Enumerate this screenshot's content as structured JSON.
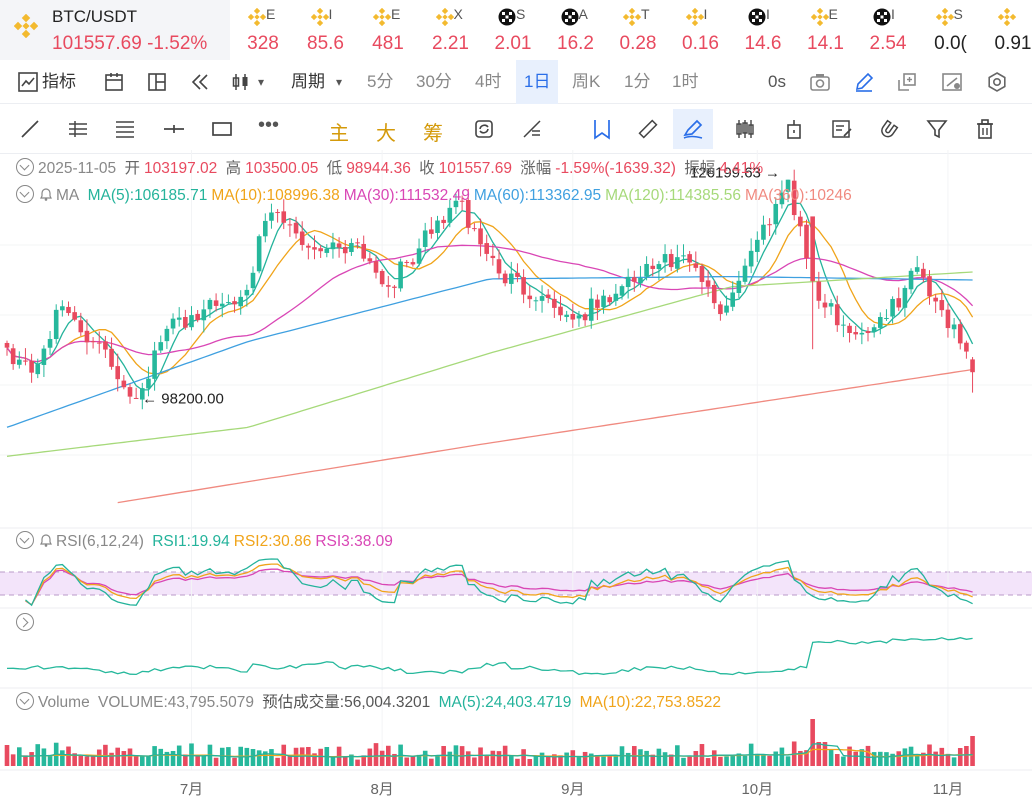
{
  "active_ticker": {
    "symbol": "BTC/USDT",
    "price": "101557.69",
    "change": "-1.52%",
    "icon": "binance-diamond-icon"
  },
  "tickers": [
    {
      "icon": "binance-diamond-icon",
      "symbol": "E",
      "price": "328",
      "color": "#e84a5f"
    },
    {
      "icon": "binance-diamond-icon",
      "symbol": "I",
      "price": "85.6",
      "color": "#e84a5f"
    },
    {
      "icon": "binance-diamond-icon",
      "symbol": "E",
      "price": "481",
      "color": "#e84a5f"
    },
    {
      "icon": "binance-diamond-icon",
      "symbol": "X",
      "price": "2.21",
      "color": "#e84a5f"
    },
    {
      "icon": "okx-cube-icon",
      "symbol": "S",
      "price": "2.01",
      "color": "#e84a5f"
    },
    {
      "icon": "okx-cube-icon",
      "symbol": "A",
      "price": "16.2",
      "color": "#e84a5f"
    },
    {
      "icon": "binance-diamond-icon",
      "symbol": "T",
      "price": "0.28",
      "color": "#e84a5f"
    },
    {
      "icon": "binance-diamond-icon",
      "symbol": "I",
      "price": "0.16",
      "color": "#e84a5f"
    },
    {
      "icon": "okx-cube-icon",
      "symbol": "I",
      "price": "14.6",
      "color": "#e84a5f"
    },
    {
      "icon": "binance-diamond-icon",
      "symbol": "E",
      "price": "14.1",
      "color": "#e84a5f"
    },
    {
      "icon": "okx-cube-icon",
      "symbol": "I",
      "price": "2.54",
      "color": "#e84a5f"
    },
    {
      "icon": "binance-diamond-icon",
      "symbol": "S",
      "price": "0.0(",
      "color": "#222222"
    },
    {
      "icon": "binance-diamond-icon",
      "symbol": "",
      "price": "0.91",
      "color": "#222222"
    }
  ],
  "toolbar": {
    "indicators_label": "指标",
    "period_label": "周期",
    "periods": [
      "5分",
      "30分",
      "4时",
      "1日",
      "周K",
      "1分",
      "1时"
    ],
    "active_period": "1日",
    "countdown": "0s"
  },
  "drawing_tools": {
    "main_label": "主",
    "big_label": "大",
    "chip_label": "筹"
  },
  "ohlc": {
    "date": "2025-11-05",
    "open_label": "开",
    "open": "103197.02",
    "high_label": "高",
    "high": "103500.05",
    "low_label": "低",
    "low": "98944.36",
    "close_label": "收",
    "close": "101557.69",
    "change_label": "涨幅",
    "change": "-1.59%(-1639.32)",
    "amp_label": "振幅",
    "amplitude": "4.41%"
  },
  "ma_legend": {
    "label": "MA",
    "items": [
      {
        "text": "MA(5):106185.71",
        "color": "#24b39b"
      },
      {
        "text": "MA(10):108996.38",
        "color": "#f0a41a"
      },
      {
        "text": "MA(30):111532.49",
        "color": "#d946b5"
      },
      {
        "text": "MA(60):113362.95",
        "color": "#3fa0e0"
      },
      {
        "text": "MA(120):114385.56",
        "color": "#a6d97a"
      },
      {
        "text": "MA(360):10246",
        "color": "#f08a80"
      }
    ]
  },
  "rsi_legend": {
    "label": "RSI(6,12,24)",
    "items": [
      {
        "text": "RSI1:19.94",
        "color": "#24b39b"
      },
      {
        "text": "RSI2:30.86",
        "color": "#f0a41a"
      },
      {
        "text": "RSI3:38.09",
        "color": "#d946b5"
      }
    ]
  },
  "volume_legend": {
    "label": "Volume",
    "volume": "VOLUME:43,795.5079",
    "forecast": "预估成交量:56,004.3201",
    "ma5": "MA(5):24,403.4719",
    "ma10": "MA(10):22,753.8522"
  },
  "colors": {
    "up": "#26b89c",
    "down": "#e84a5f",
    "accent": "#2a6ee8"
  },
  "chart_data": {
    "type": "candlestick",
    "annotations": {
      "max_label": "126199.63",
      "min_label": "98200.00"
    },
    "x_ticks": [
      "7月",
      "8月",
      "9月",
      "10月",
      "11月"
    ],
    "y_range": [
      82000,
      130000
    ],
    "rsi_band": [
      30,
      70
    ],
    "anchors": [
      [
        "2025-06-01",
        104700
      ],
      [
        "2025-06-05",
        101500
      ],
      [
        "2025-06-10",
        110000
      ],
      [
        "2025-06-15",
        105500
      ],
      [
        "2025-06-22",
        98200
      ],
      [
        "2025-06-27",
        107100
      ],
      [
        "2025-07-03",
        109600
      ],
      [
        "2025-07-09",
        111200
      ],
      [
        "2025-07-14",
        122000
      ],
      [
        "2025-07-20",
        117500
      ],
      [
        "2025-07-28",
        118100
      ],
      [
        "2025-08-02",
        112500
      ],
      [
        "2025-08-07",
        117400
      ],
      [
        "2025-08-13",
        123500
      ],
      [
        "2025-08-20",
        114200
      ],
      [
        "2025-08-27",
        111300
      ],
      [
        "2025-09-01",
        108300
      ],
      [
        "2025-09-08",
        111600
      ],
      [
        "2025-09-15",
        115400
      ],
      [
        "2025-09-20",
        115600
      ],
      [
        "2025-09-25",
        109000
      ],
      [
        "2025-10-01",
        118500
      ],
      [
        "2025-10-06",
        126199.63
      ],
      [
        "2025-10-10",
        113200
      ],
      [
        "2025-10-11",
        110700
      ],
      [
        "2025-10-17",
        106400
      ],
      [
        "2025-10-22",
        108500
      ],
      [
        "2025-10-27",
        115000
      ],
      [
        "2025-10-31",
        109500
      ],
      [
        "2025-11-04",
        104200
      ],
      [
        "2025-11-05",
        101557.69
      ]
    ]
  }
}
